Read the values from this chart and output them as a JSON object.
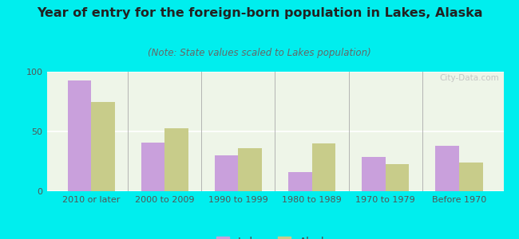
{
  "title": "Year of entry for the foreign-born population in Lakes, Alaska",
  "subtitle": "(Note: State values scaled to Lakes population)",
  "categories": [
    "2010 or later",
    "2000 to 2009",
    "1990 to 1999",
    "1980 to 1989",
    "1970 to 1979",
    "Before 1970"
  ],
  "lakes_values": [
    93,
    41,
    30,
    16,
    29,
    38
  ],
  "alaska_values": [
    75,
    53,
    36,
    40,
    23,
    24
  ],
  "lakes_color": "#c9a0dc",
  "alaska_color": "#c8cc8a",
  "background_outer": "#00eeee",
  "background_inner": "#eef5e8",
  "ylim": [
    0,
    100
  ],
  "yticks": [
    0,
    50,
    100
  ],
  "bar_width": 0.32,
  "title_fontsize": 11.5,
  "subtitle_fontsize": 8.5,
  "tick_fontsize": 8,
  "legend_fontsize": 9.5
}
